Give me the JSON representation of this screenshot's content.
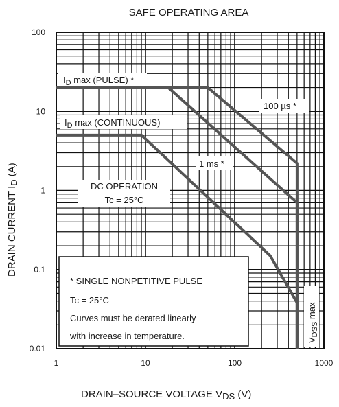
{
  "chart_data": {
    "type": "line",
    "title": "SAFE OPERATING AREA",
    "xlabel": {
      "prefix": "DRAIN–SOURCE VOLTAGE",
      "symbol": "V",
      "sub": "DS",
      "unit": "(V)"
    },
    "ylabel": {
      "prefix": "DRAIN CURRENT",
      "symbol": "I",
      "sub": "D",
      "unit": "(A)"
    },
    "x_scale": "log",
    "y_scale": "log",
    "xlim": [
      1,
      1000
    ],
    "ylim": [
      0.01,
      100
    ],
    "x_ticks": [
      {
        "value": 1,
        "label": "1"
      },
      {
        "value": 10,
        "label": "10"
      },
      {
        "value": 100,
        "label": "100"
      },
      {
        "value": 1000,
        "label": "1000"
      }
    ],
    "y_ticks": [
      {
        "value": 100,
        "label": "100"
      },
      {
        "value": 10,
        "label": "10"
      },
      {
        "value": 1,
        "label": "1"
      },
      {
        "value": 0.1,
        "label": "0.1"
      },
      {
        "value": 0.01,
        "label": "0.01"
      }
    ],
    "grid": true,
    "series": [
      {
        "name": "100 µs *",
        "points": [
          [
            1,
            20
          ],
          [
            50,
            20
          ],
          [
            500,
            2.2
          ],
          [
            500,
            0.01
          ]
        ]
      },
      {
        "name": "1 ms *",
        "points": [
          [
            1,
            20
          ],
          [
            18,
            20
          ],
          [
            500,
            0.7
          ],
          [
            500,
            0.01
          ]
        ]
      },
      {
        "name": "DC OPERATION",
        "points": [
          [
            1,
            5
          ],
          [
            9,
            5
          ],
          [
            250,
            0.15
          ],
          [
            500,
            0.038
          ],
          [
            500,
            0.01
          ]
        ]
      }
    ],
    "annotations": {
      "id_pulse": {
        "main": "I",
        "sub": "D",
        "rest": " max (PULSE) *"
      },
      "id_cont": {
        "main": "I",
        "sub": "D",
        "rest": " max (CONTINUOUS)"
      },
      "t100us": "100 µs *",
      "t1ms": "1 ms *",
      "dc_line1": "DC OPERATION",
      "dc_line2": "Tc = 25°C",
      "vdss": {
        "main": "V",
        "sub": "DSS",
        "rest": " max"
      }
    },
    "notes": [
      "* SINGLE NONPETITIVE PULSE",
      "Tc = 25°C",
      "Curves must be derated linearly",
      "with increase in temperature."
    ]
  }
}
